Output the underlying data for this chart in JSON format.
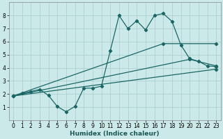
{
  "xlabel": "Humidex (Indice chaleur)",
  "background_color": "#cce9e9",
  "grid_color": "#b0d0d0",
  "line_color": "#1a6666",
  "xlim": [
    -0.5,
    23.5
  ],
  "ylim": [
    0,
    9
  ],
  "xticks": [
    0,
    1,
    2,
    3,
    4,
    5,
    6,
    7,
    8,
    9,
    10,
    11,
    12,
    13,
    14,
    15,
    16,
    17,
    18,
    19,
    20,
    21,
    22,
    23
  ],
  "yticks": [
    1,
    2,
    3,
    4,
    5,
    6,
    7,
    8
  ],
  "series1_x": [
    0,
    1,
    2,
    3,
    4,
    5,
    6,
    7,
    8,
    9,
    10,
    11,
    12,
    13,
    14,
    15,
    16,
    17,
    18,
    19,
    20,
    21,
    22,
    23
  ],
  "series1_y": [
    1.85,
    2.05,
    2.2,
    2.35,
    1.9,
    1.05,
    0.65,
    1.05,
    2.45,
    2.45,
    2.6,
    5.3,
    8.0,
    7.0,
    7.6,
    6.9,
    8.0,
    8.15,
    7.55,
    5.75,
    4.7,
    4.5,
    4.15,
    4.1
  ],
  "series2_x": [
    0,
    17,
    23
  ],
  "series2_y": [
    1.85,
    5.85,
    5.85
  ],
  "series3_x": [
    0,
    20,
    23
  ],
  "series3_y": [
    1.85,
    4.65,
    4.15
  ],
  "series4_x": [
    0,
    23
  ],
  "series4_y": [
    1.85,
    3.9
  ]
}
